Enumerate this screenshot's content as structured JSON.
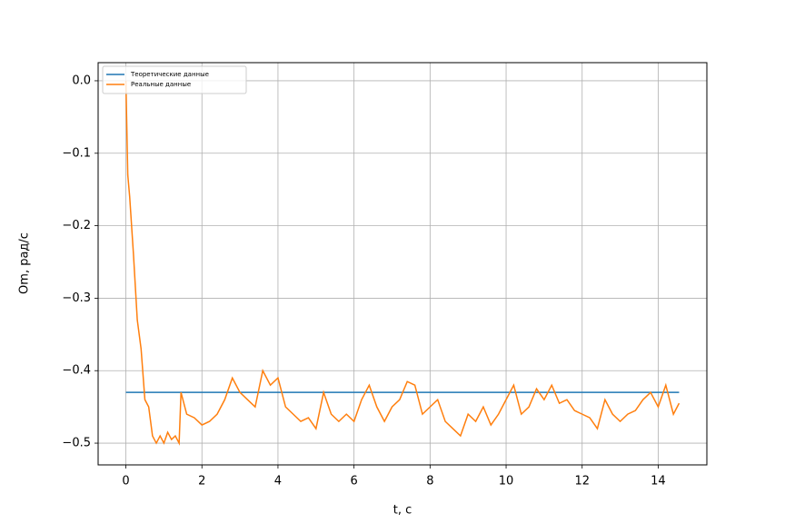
{
  "chart_data": {
    "type": "line",
    "xlabel": "t, c",
    "ylabel": "Om, рад/с",
    "xlim": [
      -0.73,
      15.28
    ],
    "ylim": [
      -0.53,
      0.025
    ],
    "xticks": [
      0,
      2,
      4,
      6,
      8,
      10,
      12,
      14
    ],
    "yticks": [
      {
        "value": 0,
        "label": "0.0"
      },
      {
        "value": -0.1,
        "label": "−0.1"
      },
      {
        "value": -0.2,
        "label": "−0.2"
      },
      {
        "value": -0.3,
        "label": "−0.3"
      },
      {
        "value": -0.4,
        "label": "−0.4"
      },
      {
        "value": -0.5,
        "label": "−0.5"
      }
    ],
    "grid": true,
    "legend": "upper left",
    "series": [
      {
        "name": "Теоретические данные",
        "color": "#1f77b4",
        "x": [
          0,
          14.55
        ],
        "values": [
          -0.43,
          -0.43
        ]
      },
      {
        "name": "Реальные данные",
        "color": "#ff7f0e",
        "x": [
          0,
          0.05,
          0.1,
          0.2,
          0.3,
          0.4,
          0.5,
          0.6,
          0.7,
          0.8,
          0.9,
          1.0,
          1.1,
          1.2,
          1.3,
          1.4,
          1.45,
          1.6,
          1.8,
          2.0,
          2.2,
          2.4,
          2.6,
          2.8,
          3.0,
          3.2,
          3.4,
          3.6,
          3.8,
          4.0,
          4.2,
          4.4,
          4.6,
          4.8,
          5.0,
          5.2,
          5.4,
          5.6,
          5.8,
          6.0,
          6.2,
          6.4,
          6.6,
          6.8,
          7.0,
          7.2,
          7.4,
          7.6,
          7.8,
          8.0,
          8.2,
          8.4,
          8.6,
          8.8,
          9.0,
          9.2,
          9.4,
          9.6,
          9.8,
          10.0,
          10.2,
          10.4,
          10.6,
          10.8,
          11.0,
          11.2,
          11.4,
          11.6,
          11.8,
          12.0,
          12.2,
          12.4,
          12.6,
          12.8,
          13.0,
          13.2,
          13.4,
          13.6,
          13.8,
          14.0,
          14.2,
          14.4,
          14.55
        ],
        "values": [
          0,
          -0.13,
          -0.16,
          -0.24,
          -0.33,
          -0.37,
          -0.44,
          -0.45,
          -0.49,
          -0.5,
          -0.49,
          -0.5,
          -0.485,
          -0.495,
          -0.49,
          -0.5,
          -0.43,
          -0.46,
          -0.465,
          -0.475,
          -0.47,
          -0.46,
          -0.44,
          -0.41,
          -0.43,
          -0.44,
          -0.45,
          -0.4,
          -0.42,
          -0.41,
          -0.45,
          -0.46,
          -0.47,
          -0.465,
          -0.48,
          -0.43,
          -0.46,
          -0.47,
          -0.46,
          -0.47,
          -0.44,
          -0.42,
          -0.45,
          -0.47,
          -0.45,
          -0.44,
          -0.415,
          -0.42,
          -0.46,
          -0.45,
          -0.44,
          -0.47,
          -0.48,
          -0.49,
          -0.46,
          -0.47,
          -0.45,
          -0.475,
          -0.46,
          -0.44,
          -0.42,
          -0.46,
          -0.45,
          -0.425,
          -0.44,
          -0.42,
          -0.445,
          -0.44,
          -0.455,
          -0.46,
          -0.465,
          -0.48,
          -0.44,
          -0.46,
          -0.47,
          -0.46,
          -0.455,
          -0.44,
          -0.43,
          -0.45,
          -0.42,
          -0.46,
          -0.445
        ]
      }
    ]
  }
}
